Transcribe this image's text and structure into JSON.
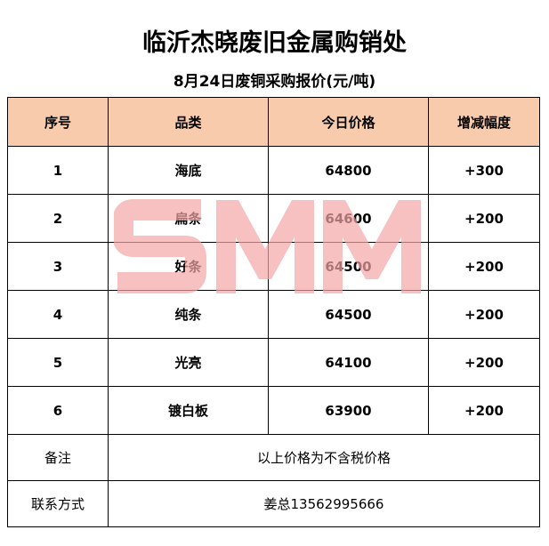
{
  "title": "临沂杰晓废旧金属购销处",
  "subtitle": "8月24日废铜采购报价(元/吨)",
  "header": [
    "序号",
    "品类",
    "今日价格",
    "增减幅度"
  ],
  "rows": [
    {
      "no": "1",
      "item": "海底",
      "price": "64800",
      "change": "+300"
    },
    {
      "no": "2",
      "item": "扁条",
      "price": "64600",
      "change": "+200"
    },
    {
      "no": "3",
      "item": "好条",
      "price": "64500",
      "change": "+200"
    },
    {
      "no": "4",
      "item": "纯条",
      "price": "64500",
      "change": "+200"
    },
    {
      "no": "5",
      "item": "光亮",
      "price": "64100",
      "change": "+200"
    },
    {
      "no": "6",
      "item": "镀白板",
      "price": "63900",
      "change": "+200"
    }
  ],
  "remark": {
    "label": "备注",
    "value": "以上价格为不含税价格"
  },
  "contact": {
    "label": "联系方式",
    "value": "姜总13562995666"
  },
  "watermark": "SMM",
  "colors": {
    "header_bg": "#f8cbad",
    "watermark": "#f4a6a6"
  }
}
